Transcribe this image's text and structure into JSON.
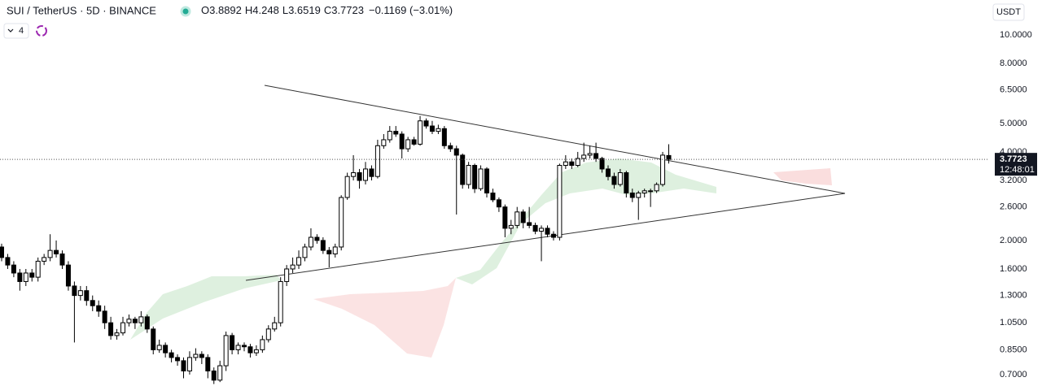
{
  "chart_data": {
    "type": "candlestick",
    "title": "SUI / TetherUS · 5D · BINANCE",
    "ohlc_labels": [
      "O",
      "H",
      "L",
      "C"
    ],
    "change": "−0.1169 (−3.01%)",
    "indicator_count": 4,
    "currency": "USDT",
    "countdown": "12:48:01",
    "log_scale": true,
    "ylim": [
      0.64,
      13.14
    ],
    "yticks": [
      {
        "value": 10,
        "label": "10.0000"
      },
      {
        "value": 8,
        "label": "8.0000"
      },
      {
        "value": 6.5,
        "label": "6.5000"
      },
      {
        "value": 5,
        "label": "5.0000"
      },
      {
        "value": 4,
        "label": "4.0000"
      },
      {
        "value": 3.2,
        "label": "3.2000"
      },
      {
        "value": 2.6,
        "label": "2.6000"
      },
      {
        "value": 2,
        "label": "2.0000"
      },
      {
        "value": 1.6,
        "label": "1.6000"
      },
      {
        "value": 1.3,
        "label": "1.3000"
      },
      {
        "value": 1.05,
        "label": "1.0500"
      },
      {
        "value": 0.85,
        "label": "0.8500"
      },
      {
        "value": 0.7,
        "label": "0.7000"
      }
    ],
    "up_color": "#ffffff",
    "down_color": "#000000",
    "ohlc": [
      [
        1.9,
        1.95,
        1.7,
        1.75
      ],
      [
        1.75,
        1.8,
        1.6,
        1.65
      ],
      [
        1.65,
        1.7,
        1.5,
        1.55
      ],
      [
        1.55,
        1.6,
        1.35,
        1.45
      ],
      [
        1.45,
        1.6,
        1.4,
        1.55
      ],
      [
        1.55,
        1.6,
        1.45,
        1.5
      ],
      [
        1.5,
        1.75,
        1.45,
        1.7
      ],
      [
        1.7,
        1.8,
        1.65,
        1.75
      ],
      [
        1.75,
        2.1,
        1.7,
        1.85
      ],
      [
        1.85,
        2.0,
        1.75,
        1.8
      ],
      [
        1.8,
        1.85,
        1.6,
        1.65
      ],
      [
        1.65,
        1.7,
        1.35,
        1.4
      ],
      [
        1.4,
        1.45,
        0.9,
        1.3
      ],
      [
        1.3,
        1.4,
        1.25,
        1.35
      ],
      [
        1.35,
        1.4,
        1.2,
        1.25
      ],
      [
        1.25,
        1.3,
        1.15,
        1.2
      ],
      [
        1.2,
        1.25,
        1.1,
        1.15
      ],
      [
        1.15,
        1.2,
        1.0,
        1.05
      ],
      [
        1.05,
        1.1,
        0.92,
        0.95
      ],
      [
        0.95,
        1.0,
        0.92,
        0.97
      ],
      [
        0.97,
        1.1,
        0.95,
        1.05
      ],
      [
        1.05,
        1.12,
        1.02,
        1.08
      ],
      [
        1.08,
        1.1,
        1.0,
        1.05
      ],
      [
        1.05,
        1.15,
        1.02,
        1.1
      ],
      [
        1.1,
        1.12,
        0.97,
        1.0
      ],
      [
        1.0,
        1.02,
        0.82,
        0.85
      ],
      [
        0.85,
        0.92,
        0.83,
        0.88
      ],
      [
        0.88,
        0.9,
        0.8,
        0.83
      ],
      [
        0.83,
        0.85,
        0.77,
        0.8
      ],
      [
        0.8,
        0.82,
        0.75,
        0.78
      ],
      [
        0.78,
        0.8,
        0.68,
        0.72
      ],
      [
        0.72,
        0.84,
        0.7,
        0.8
      ],
      [
        0.8,
        0.86,
        0.78,
        0.82
      ],
      [
        0.82,
        0.84,
        0.76,
        0.8
      ],
      [
        0.8,
        0.82,
        0.68,
        0.72
      ],
      [
        0.72,
        0.74,
        0.65,
        0.67
      ],
      [
        0.67,
        0.78,
        0.66,
        0.75
      ],
      [
        0.75,
        0.98,
        0.72,
        0.95
      ],
      [
        0.95,
        0.97,
        0.82,
        0.85
      ],
      [
        0.85,
        0.9,
        0.82,
        0.88
      ],
      [
        0.88,
        0.9,
        0.84,
        0.87
      ],
      [
        0.87,
        0.89,
        0.8,
        0.83
      ],
      [
        0.83,
        0.88,
        0.81,
        0.85
      ],
      [
        0.85,
        0.95,
        0.83,
        0.92
      ],
      [
        0.92,
        1.03,
        0.9,
        1.0
      ],
      [
        1.0,
        1.1,
        0.98,
        1.05
      ],
      [
        1.05,
        1.5,
        1.02,
        1.45
      ],
      [
        1.45,
        1.65,
        1.4,
        1.6
      ],
      [
        1.6,
        1.75,
        1.55,
        1.65
      ],
      [
        1.65,
        1.85,
        1.6,
        1.75
      ],
      [
        1.75,
        1.95,
        1.7,
        1.9
      ],
      [
        1.9,
        2.2,
        1.85,
        2.05
      ],
      [
        2.05,
        2.1,
        1.95,
        2.0
      ],
      [
        2.0,
        2.05,
        1.8,
        1.85
      ],
      [
        1.85,
        1.9,
        1.62,
        1.8
      ],
      [
        1.8,
        1.95,
        1.75,
        1.9
      ],
      [
        1.9,
        2.85,
        1.85,
        2.8
      ],
      [
        2.8,
        3.4,
        2.75,
        3.3
      ],
      [
        3.3,
        3.9,
        3.2,
        3.4
      ],
      [
        3.4,
        3.5,
        3.0,
        3.2
      ],
      [
        3.2,
        3.7,
        3.1,
        3.5
      ],
      [
        3.5,
        3.6,
        3.2,
        3.3
      ],
      [
        3.3,
        4.4,
        3.25,
        4.2
      ],
      [
        4.2,
        4.6,
        4.1,
        4.4
      ],
      [
        4.4,
        4.9,
        4.3,
        4.7
      ],
      [
        4.7,
        4.9,
        4.5,
        4.6
      ],
      [
        4.6,
        4.7,
        3.8,
        4.1
      ],
      [
        4.1,
        4.5,
        4.0,
        4.4
      ],
      [
        4.4,
        4.5,
        4.2,
        4.25
      ],
      [
        4.25,
        5.3,
        4.2,
        5.1
      ],
      [
        5.1,
        5.2,
        4.8,
        4.9
      ],
      [
        4.9,
        5.1,
        4.6,
        4.7
      ],
      [
        4.7,
        4.95,
        4.6,
        4.8
      ],
      [
        4.8,
        4.9,
        4.1,
        4.2
      ],
      [
        4.2,
        4.3,
        4.0,
        4.1
      ],
      [
        4.1,
        4.2,
        2.45,
        3.9
      ],
      [
        3.9,
        3.95,
        3.0,
        3.1
      ],
      [
        3.1,
        3.7,
        3.0,
        3.6
      ],
      [
        3.6,
        3.65,
        2.9,
        3.0
      ],
      [
        3.0,
        3.6,
        2.95,
        3.5
      ],
      [
        3.5,
        3.55,
        2.8,
        2.9
      ],
      [
        2.9,
        3.0,
        2.7,
        2.75
      ],
      [
        2.75,
        2.8,
        2.5,
        2.6
      ],
      [
        2.6,
        2.65,
        2.05,
        2.2
      ],
      [
        2.2,
        2.35,
        2.1,
        2.25
      ],
      [
        2.25,
        2.6,
        2.2,
        2.5
      ],
      [
        2.5,
        2.55,
        2.2,
        2.3
      ],
      [
        2.3,
        2.6,
        2.2,
        2.25
      ],
      [
        2.25,
        2.3,
        2.1,
        2.15
      ],
      [
        2.15,
        2.25,
        1.7,
        2.2
      ],
      [
        2.2,
        2.25,
        2.05,
        2.1
      ],
      [
        2.1,
        2.15,
        2.0,
        2.05
      ],
      [
        2.05,
        3.65,
        2.0,
        3.6
      ],
      [
        3.6,
        3.9,
        3.5,
        3.7
      ],
      [
        3.7,
        3.8,
        3.5,
        3.6
      ],
      [
        3.6,
        4.0,
        3.55,
        3.8
      ],
      [
        3.8,
        4.3,
        3.7,
        3.9
      ],
      [
        3.9,
        4.2,
        3.8,
        3.95
      ],
      [
        3.95,
        4.3,
        3.7,
        3.8
      ],
      [
        3.8,
        3.85,
        3.4,
        3.5
      ],
      [
        3.5,
        3.6,
        3.2,
        3.3
      ],
      [
        3.3,
        3.4,
        3.0,
        3.1
      ],
      [
        3.1,
        3.5,
        3.05,
        3.4
      ],
      [
        3.4,
        3.45,
        2.8,
        2.9
      ],
      [
        2.9,
        3.0,
        2.7,
        2.8
      ],
      [
        2.8,
        2.95,
        2.35,
        2.9
      ],
      [
        2.9,
        3.0,
        2.8,
        2.95
      ],
      [
        2.95,
        3.0,
        2.6,
        2.95
      ],
      [
        2.95,
        3.15,
        2.9,
        3.1
      ],
      [
        3.1,
        4.0,
        3.05,
        3.9
      ],
      [
        3.8892,
        4.248,
        3.6519,
        3.7723
      ]
    ]
  }
}
